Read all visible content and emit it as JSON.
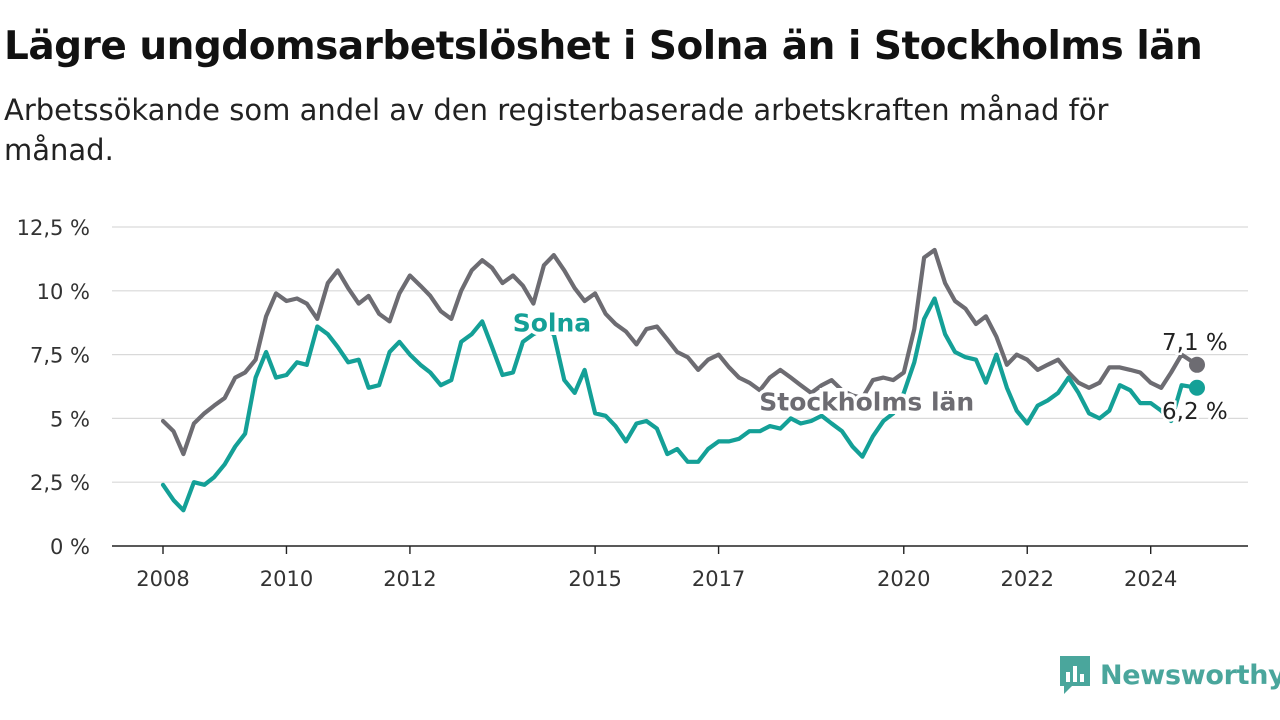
{
  "header": {
    "title": "Lägre ungdomsarbetslöshet i Solna än i Stockholms län",
    "subtitle": "Arbetssökande som andel av den registerbaserade arbetskraften månad för månad."
  },
  "brand": {
    "name": "Newsworthy",
    "icon": "chart-speech-bubble-icon",
    "color": "#4aa69c"
  },
  "chart_data": {
    "type": "line",
    "x_range": [
      2008.0,
      2024.75
    ],
    "ylim": [
      0,
      12.5
    ],
    "yticks": [
      {
        "value": 0,
        "label": "0 %"
      },
      {
        "value": 2.5,
        "label": "2,5 %"
      },
      {
        "value": 5,
        "label": "5 %"
      },
      {
        "value": 7.5,
        "label": "7,5 %"
      },
      {
        "value": 10,
        "label": "10 %"
      },
      {
        "value": 12.5,
        "label": "12,5 %"
      }
    ],
    "xticks": [
      {
        "value": 2008,
        "label": "2008"
      },
      {
        "value": 2010,
        "label": "2010"
      },
      {
        "value": 2012,
        "label": "2012"
      },
      {
        "value": 2015,
        "label": "2015"
      },
      {
        "value": 2017,
        "label": "2017"
      },
      {
        "value": 2020,
        "label": "2020"
      },
      {
        "value": 2022,
        "label": "2022"
      },
      {
        "value": 2024,
        "label": "2024"
      }
    ],
    "grid": "horizontal",
    "series": [
      {
        "name": "Stockholms län",
        "color": "#6d6c72",
        "end_label": "7,1 %",
        "points": [
          [
            2008.0,
            4.9
          ],
          [
            2008.17,
            4.5
          ],
          [
            2008.33,
            3.6
          ],
          [
            2008.5,
            4.8
          ],
          [
            2008.67,
            5.2
          ],
          [
            2008.83,
            5.5
          ],
          [
            2009.0,
            5.8
          ],
          [
            2009.17,
            6.6
          ],
          [
            2009.33,
            6.8
          ],
          [
            2009.5,
            7.3
          ],
          [
            2009.67,
            9.0
          ],
          [
            2009.83,
            9.9
          ],
          [
            2010.0,
            9.6
          ],
          [
            2010.17,
            9.7
          ],
          [
            2010.33,
            9.5
          ],
          [
            2010.5,
            8.9
          ],
          [
            2010.67,
            10.3
          ],
          [
            2010.83,
            10.8
          ],
          [
            2011.0,
            10.1
          ],
          [
            2011.17,
            9.5
          ],
          [
            2011.33,
            9.8
          ],
          [
            2011.5,
            9.1
          ],
          [
            2011.67,
            8.8
          ],
          [
            2011.83,
            9.9
          ],
          [
            2012.0,
            10.6
          ],
          [
            2012.17,
            10.2
          ],
          [
            2012.33,
            9.8
          ],
          [
            2012.5,
            9.2
          ],
          [
            2012.67,
            8.9
          ],
          [
            2012.83,
            10.0
          ],
          [
            2013.0,
            10.8
          ],
          [
            2013.17,
            11.2
          ],
          [
            2013.33,
            10.9
          ],
          [
            2013.5,
            10.3
          ],
          [
            2013.67,
            10.6
          ],
          [
            2013.83,
            10.2
          ],
          [
            2014.0,
            9.5
          ],
          [
            2014.17,
            11.0
          ],
          [
            2014.33,
            11.4
          ],
          [
            2014.5,
            10.8
          ],
          [
            2014.67,
            10.1
          ],
          [
            2014.83,
            9.6
          ],
          [
            2015.0,
            9.9
          ],
          [
            2015.17,
            9.1
          ],
          [
            2015.33,
            8.7
          ],
          [
            2015.5,
            8.4
          ],
          [
            2015.67,
            7.9
          ],
          [
            2015.83,
            8.5
          ],
          [
            2016.0,
            8.6
          ],
          [
            2016.17,
            8.1
          ],
          [
            2016.33,
            7.6
          ],
          [
            2016.5,
            7.4
          ],
          [
            2016.67,
            6.9
          ],
          [
            2016.83,
            7.3
          ],
          [
            2017.0,
            7.5
          ],
          [
            2017.17,
            7.0
          ],
          [
            2017.33,
            6.6
          ],
          [
            2017.5,
            6.4
          ],
          [
            2017.67,
            6.1
          ],
          [
            2017.83,
            6.6
          ],
          [
            2018.0,
            6.9
          ],
          [
            2018.17,
            6.6
          ],
          [
            2018.33,
            6.3
          ],
          [
            2018.5,
            6.0
          ],
          [
            2018.67,
            6.3
          ],
          [
            2018.83,
            6.5
          ],
          [
            2019.0,
            6.1
          ],
          [
            2019.17,
            5.9
          ],
          [
            2019.33,
            5.8
          ],
          [
            2019.5,
            6.5
          ],
          [
            2019.67,
            6.6
          ],
          [
            2019.83,
            6.5
          ],
          [
            2020.0,
            6.8
          ],
          [
            2020.17,
            8.5
          ],
          [
            2020.33,
            11.3
          ],
          [
            2020.5,
            11.6
          ],
          [
            2020.67,
            10.3
          ],
          [
            2020.83,
            9.6
          ],
          [
            2021.0,
            9.3
          ],
          [
            2021.17,
            8.7
          ],
          [
            2021.33,
            9.0
          ],
          [
            2021.5,
            8.2
          ],
          [
            2021.67,
            7.1
          ],
          [
            2021.83,
            7.5
          ],
          [
            2022.0,
            7.3
          ],
          [
            2022.17,
            6.9
          ],
          [
            2022.33,
            7.1
          ],
          [
            2022.5,
            7.3
          ],
          [
            2022.67,
            6.8
          ],
          [
            2022.83,
            6.4
          ],
          [
            2023.0,
            6.2
          ],
          [
            2023.17,
            6.4
          ],
          [
            2023.33,
            7.0
          ],
          [
            2023.5,
            7.0
          ],
          [
            2023.67,
            6.9
          ],
          [
            2023.83,
            6.8
          ],
          [
            2024.0,
            6.4
          ],
          [
            2024.17,
            6.2
          ],
          [
            2024.33,
            6.8
          ],
          [
            2024.5,
            7.5
          ],
          [
            2024.75,
            7.1
          ]
        ]
      },
      {
        "name": "Solna",
        "color": "#14a097",
        "end_label": "6,2 %",
        "points": [
          [
            2008.0,
            2.4
          ],
          [
            2008.17,
            1.8
          ],
          [
            2008.33,
            1.4
          ],
          [
            2008.5,
            2.5
          ],
          [
            2008.67,
            2.4
          ],
          [
            2008.83,
            2.7
          ],
          [
            2009.0,
            3.2
          ],
          [
            2009.17,
            3.9
          ],
          [
            2009.33,
            4.4
          ],
          [
            2009.5,
            6.6
          ],
          [
            2009.67,
            7.6
          ],
          [
            2009.83,
            6.6
          ],
          [
            2010.0,
            6.7
          ],
          [
            2010.17,
            7.2
          ],
          [
            2010.33,
            7.1
          ],
          [
            2010.5,
            8.6
          ],
          [
            2010.67,
            8.3
          ],
          [
            2010.83,
            7.8
          ],
          [
            2011.0,
            7.2
          ],
          [
            2011.17,
            7.3
          ],
          [
            2011.33,
            6.2
          ],
          [
            2011.5,
            6.3
          ],
          [
            2011.67,
            7.6
          ],
          [
            2011.83,
            8.0
          ],
          [
            2012.0,
            7.5
          ],
          [
            2012.17,
            7.1
          ],
          [
            2012.33,
            6.8
          ],
          [
            2012.5,
            6.3
          ],
          [
            2012.67,
            6.5
          ],
          [
            2012.83,
            8.0
          ],
          [
            2013.0,
            8.3
          ],
          [
            2013.17,
            8.8
          ],
          [
            2013.33,
            7.8
          ],
          [
            2013.5,
            6.7
          ],
          [
            2013.67,
            6.8
          ],
          [
            2013.83,
            8.0
          ],
          [
            2014.0,
            8.3
          ],
          [
            2014.17,
            8.5
          ],
          [
            2014.33,
            8.3
          ],
          [
            2014.5,
            6.5
          ],
          [
            2014.67,
            6.0
          ],
          [
            2014.83,
            6.9
          ],
          [
            2015.0,
            5.2
          ],
          [
            2015.17,
            5.1
          ],
          [
            2015.33,
            4.7
          ],
          [
            2015.5,
            4.1
          ],
          [
            2015.67,
            4.8
          ],
          [
            2015.83,
            4.9
          ],
          [
            2016.0,
            4.6
          ],
          [
            2016.17,
            3.6
          ],
          [
            2016.33,
            3.8
          ],
          [
            2016.5,
            3.3
          ],
          [
            2016.67,
            3.3
          ],
          [
            2016.83,
            3.8
          ],
          [
            2017.0,
            4.1
          ],
          [
            2017.17,
            4.1
          ],
          [
            2017.33,
            4.2
          ],
          [
            2017.5,
            4.5
          ],
          [
            2017.67,
            4.5
          ],
          [
            2017.83,
            4.7
          ],
          [
            2018.0,
            4.6
          ],
          [
            2018.17,
            5.0
          ],
          [
            2018.33,
            4.8
          ],
          [
            2018.5,
            4.9
          ],
          [
            2018.67,
            5.1
          ],
          [
            2018.83,
            4.8
          ],
          [
            2019.0,
            4.5
          ],
          [
            2019.17,
            3.9
          ],
          [
            2019.33,
            3.5
          ],
          [
            2019.5,
            4.3
          ],
          [
            2019.67,
            4.9
          ],
          [
            2019.83,
            5.2
          ],
          [
            2020.0,
            6.0
          ],
          [
            2020.17,
            7.2
          ],
          [
            2020.33,
            8.9
          ],
          [
            2020.5,
            9.7
          ],
          [
            2020.67,
            8.3
          ],
          [
            2020.83,
            7.6
          ],
          [
            2021.0,
            7.4
          ],
          [
            2021.17,
            7.3
          ],
          [
            2021.33,
            6.4
          ],
          [
            2021.5,
            7.5
          ],
          [
            2021.67,
            6.2
          ],
          [
            2021.83,
            5.3
          ],
          [
            2022.0,
            4.8
          ],
          [
            2022.17,
            5.5
          ],
          [
            2022.33,
            5.7
          ],
          [
            2022.5,
            6.0
          ],
          [
            2022.67,
            6.6
          ],
          [
            2022.83,
            6.0
          ],
          [
            2023.0,
            5.2
          ],
          [
            2023.17,
            5.0
          ],
          [
            2023.33,
            5.3
          ],
          [
            2023.5,
            6.3
          ],
          [
            2023.67,
            6.1
          ],
          [
            2023.83,
            5.6
          ],
          [
            2024.0,
            5.6
          ],
          [
            2024.17,
            5.3
          ],
          [
            2024.33,
            4.9
          ],
          [
            2024.5,
            6.3
          ],
          [
            2024.75,
            6.2
          ]
        ]
      }
    ],
    "series_labels": [
      {
        "text": "Solna",
        "series": "Solna",
        "color": "#14a097",
        "x": 2014.3,
        "y": 8.4
      },
      {
        "text": "Stockholms län",
        "series": "Stockholms län",
        "color": "#6d6c72",
        "x": 2019.4,
        "y": 5.3
      }
    ]
  }
}
